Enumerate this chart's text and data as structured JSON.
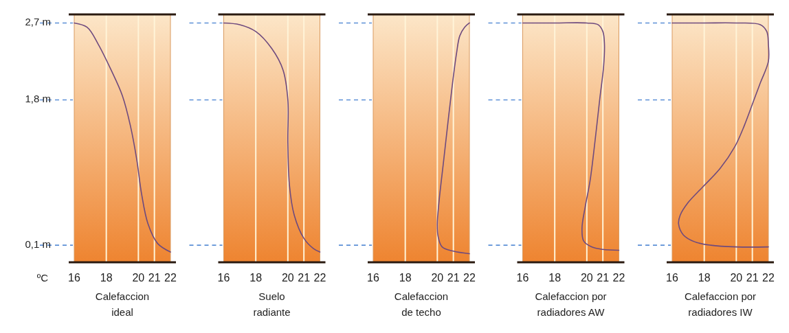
{
  "chart_data": [
    {
      "type": "line",
      "title": "Calefaccion\nideal",
      "xlim": [
        16,
        22
      ],
      "xticks": [
        16,
        18,
        20,
        21,
        22
      ],
      "ylim": [
        -0.1,
        2.8
      ],
      "yticks": [
        {
          "value": 2.7,
          "label": "2,7 m"
        },
        {
          "value": 1.8,
          "label": "1,8 m"
        },
        {
          "value": 0.1,
          "label": "0,1 m"
        }
      ],
      "grid": "x",
      "annotations": [
        "ºC"
      ],
      "series": [
        {
          "color": "#6e4a7e",
          "x": [
            16,
            16.8,
            17.5,
            18.3,
            19.0,
            19.5,
            19.9,
            20.2,
            20.6,
            21.2,
            22
          ],
          "values": [
            2.7,
            2.65,
            2.45,
            2.15,
            1.85,
            1.5,
            1.1,
            0.7,
            0.35,
            0.12,
            0.02
          ]
        }
      ]
    },
    {
      "type": "line",
      "title": "Suelo\nradiante",
      "xlim": [
        16,
        22
      ],
      "xticks": [
        16,
        18,
        20,
        21,
        22
      ],
      "ylim": [
        -0.1,
        2.8
      ],
      "yticks": [
        {
          "value": 2.7,
          "label": null
        },
        {
          "value": 1.8,
          "label": null
        },
        {
          "value": 0.1,
          "label": null
        }
      ],
      "grid": "x",
      "tick_labels": "x",
      "series": [
        {
          "color": "#6e4a7e",
          "x": [
            16,
            17,
            18,
            19,
            19.7,
            20,
            20,
            20.1,
            20.4,
            21,
            21.6,
            22
          ],
          "values": [
            2.7,
            2.68,
            2.6,
            2.4,
            2.15,
            1.8,
            1.3,
            0.8,
            0.45,
            0.18,
            0.06,
            0.02
          ]
        }
      ]
    },
    {
      "type": "line",
      "title": "Calefaccion\nde techo",
      "xlim": [
        16,
        22
      ],
      "xticks": [
        16,
        18,
        20,
        21,
        22
      ],
      "ylim": [
        -0.1,
        2.8
      ],
      "yticks": [
        {
          "value": 2.7,
          "label": null
        },
        {
          "value": 1.8,
          "label": null
        },
        {
          "value": 0.1,
          "label": null
        }
      ],
      "grid": "x",
      "tick_labels": "x",
      "series": [
        {
          "color": "#6e4a7e",
          "x": [
            22,
            21,
            20.3,
            20.05,
            20.0,
            20.1,
            20.4,
            20.7,
            20.95,
            21.2,
            21.4,
            21.7,
            22
          ],
          "values": [
            0.0,
            0.03,
            0.08,
            0.2,
            0.35,
            0.6,
            1.1,
            1.6,
            2.0,
            2.35,
            2.55,
            2.65,
            2.7
          ]
        }
      ]
    },
    {
      "type": "line",
      "title": "Calefaccion por\nradiadores AW",
      "xlim": [
        16,
        22
      ],
      "xticks": [
        16,
        18,
        20,
        21,
        22
      ],
      "ylim": [
        -0.1,
        2.8
      ],
      "yticks": [
        {
          "value": 2.7,
          "label": null
        },
        {
          "value": 1.8,
          "label": null
        },
        {
          "value": 0.1,
          "label": null
        }
      ],
      "grid": "x",
      "tick_labels": "x",
      "series": [
        {
          "color": "#6e4a7e",
          "x": [
            16,
            18,
            20,
            20.7,
            21.0,
            21.1,
            21.05,
            20.8,
            20.5,
            20.2,
            19.9,
            19.7,
            19.8,
            20.3,
            21,
            22
          ],
          "values": [
            2.7,
            2.7,
            2.7,
            2.68,
            2.6,
            2.45,
            2.2,
            1.8,
            1.3,
            0.85,
            0.55,
            0.3,
            0.15,
            0.08,
            0.05,
            0.04
          ]
        }
      ]
    },
    {
      "type": "line",
      "title": "Calefaccion por\nradiadores IW",
      "xlim": [
        16,
        22
      ],
      "xticks": [
        16,
        18,
        20,
        21,
        22
      ],
      "ylim": [
        -0.1,
        2.8
      ],
      "yticks": [
        {
          "value": 2.7,
          "label": null
        },
        {
          "value": 1.8,
          "label": null
        },
        {
          "value": 0.1,
          "label": null
        }
      ],
      "grid": "x",
      "tick_labels": "x",
      "series": [
        {
          "color": "#6e4a7e",
          "x": [
            16,
            18,
            20,
            21.5,
            21.9,
            22,
            22,
            21.5,
            21.1,
            20.5,
            19.9,
            19,
            17.9,
            17,
            16.5,
            16.4,
            16.7,
            17.4,
            18.4,
            20,
            22
          ],
          "values": [
            2.7,
            2.7,
            2.7,
            2.68,
            2.6,
            2.45,
            2.25,
            2.0,
            1.8,
            1.5,
            1.25,
            1.0,
            0.78,
            0.6,
            0.45,
            0.35,
            0.22,
            0.14,
            0.1,
            0.08,
            0.08
          ]
        }
      ]
    }
  ]
}
